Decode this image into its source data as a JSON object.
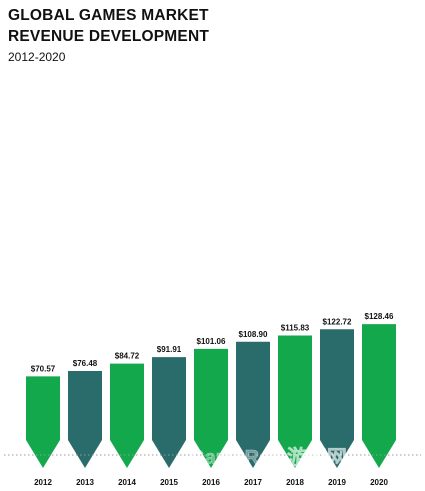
{
  "chart_data": {
    "type": "bar",
    "title_line1": "GLOBAL GAMES MARKET",
    "title_line2": "REVENUE DEVELOPMENT",
    "subtitle": "2012-2020",
    "categories": [
      "2012",
      "2013",
      "2014",
      "2015",
      "2016",
      "2017",
      "2018",
      "2019",
      "2020"
    ],
    "values": [
      70.57,
      76.48,
      84.72,
      91.91,
      101.06,
      108.9,
      115.83,
      122.72,
      128.46
    ],
    "value_labels": [
      "$70.57",
      "$76.48",
      "$84.72",
      "$91.91",
      "$101.06",
      "$108.90",
      "$115.83",
      "$122.72",
      "$128.46"
    ],
    "ylim": [
      0,
      160
    ],
    "grid": false,
    "colors": {
      "green": "#12a84b",
      "teal": "#2a6b6b"
    },
    "bar_color_pattern": [
      "green",
      "teal",
      "green",
      "teal",
      "green",
      "teal",
      "green",
      "teal",
      "green"
    ]
  },
  "watermark": "GameRes 游资网"
}
